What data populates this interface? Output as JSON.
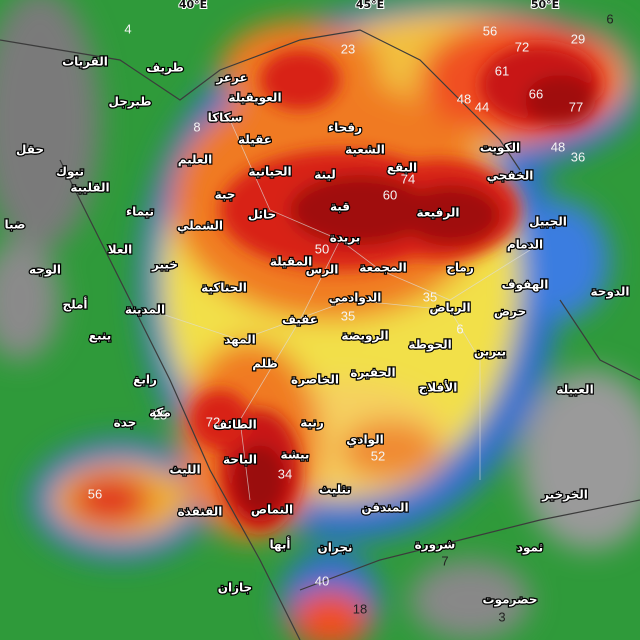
{
  "map": {
    "longitude_labels": [
      "40°E",
      "45°E",
      "50°E"
    ],
    "places": [
      "طريف",
      "القريات",
      "طبرجل",
      "عرعر",
      "العويقيلة",
      "سكاكا",
      "رفحاء",
      "عقيلة",
      "حقل",
      "تبوك",
      "العليم",
      "الحيانية",
      "لينة",
      "الشعبة",
      "البقع",
      "الكويت",
      "الخفجي",
      "تيماء",
      "القليبة",
      "جبة",
      "حائل",
      "قبة",
      "الرفيعة",
      "الجبيل",
      "الدمام",
      "ضبا",
      "الشملي",
      "بريدة",
      "الوجه",
      "العلا",
      "خيبر",
      "المقيلة",
      "الرس",
      "المجمعة",
      "رماح",
      "الهفوف",
      "الدوحة",
      "الحناكية",
      "الدوادمي",
      "حرض",
      "أملج",
      "المدينة",
      "عفيف",
      "الرياض",
      "ينبع",
      "المهد",
      "الرويضة",
      "الحوطة",
      "يبرين",
      "رابغ",
      "ظلم",
      "الحفيرة",
      "الخاصرة",
      "الأفلاج",
      "العبيلة",
      "جدة",
      "مكة",
      "الطائف",
      "رنية",
      "الوادي",
      "الليث",
      "بيشة",
      "الباحة",
      "تثليث",
      "الخرخير",
      "القنفذة",
      "النماص",
      "المندفن",
      "أبها",
      "نجران",
      "شرورة",
      "ثمود",
      "جازان",
      "حضرموت"
    ],
    "values": [
      4,
      23,
      56,
      72,
      29,
      6,
      61,
      66,
      77,
      48,
      44,
      48,
      36,
      8,
      74,
      60,
      50,
      35,
      35,
      6,
      25,
      72,
      52,
      34,
      56,
      7,
      40,
      18,
      3
    ]
  }
}
